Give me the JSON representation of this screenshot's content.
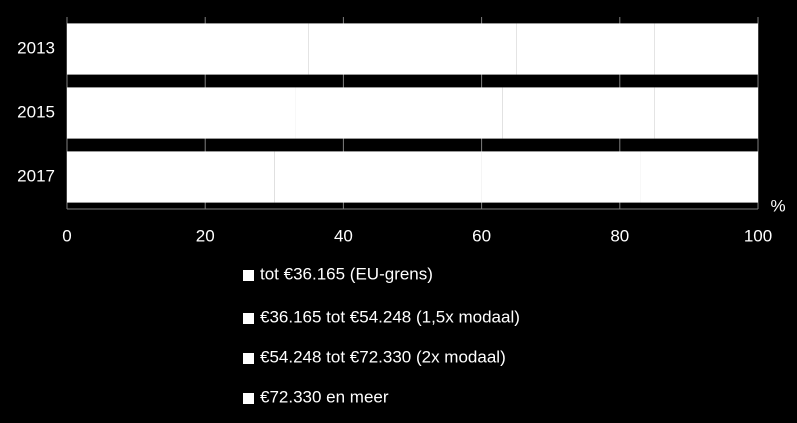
{
  "chart_data": {
    "type": "stacked-barh",
    "categories": [
      "2013",
      "2015",
      "2017"
    ],
    "series": [
      {
        "name": "tot €36.165 (EU-grens)",
        "color": "#ffffff",
        "values": [
          35,
          33,
          30
        ]
      },
      {
        "name": "€36.165 tot €54.248 (1,5x modaal)",
        "color": "#ffffff",
        "values": [
          30,
          30,
          30
        ]
      },
      {
        "name": "€54.248 tot €72.330 (2x modaal)",
        "color": "#ffffff",
        "values": [
          20,
          22,
          23
        ]
      },
      {
        "name": "€72.330 en meer",
        "color": "#ffffff",
        "values": [
          15,
          15,
          17
        ]
      }
    ],
    "xlabel": "%",
    "xlim": [
      0,
      100
    ],
    "xticks": [
      0,
      20,
      40,
      60,
      80,
      100
    ],
    "grid": true
  }
}
